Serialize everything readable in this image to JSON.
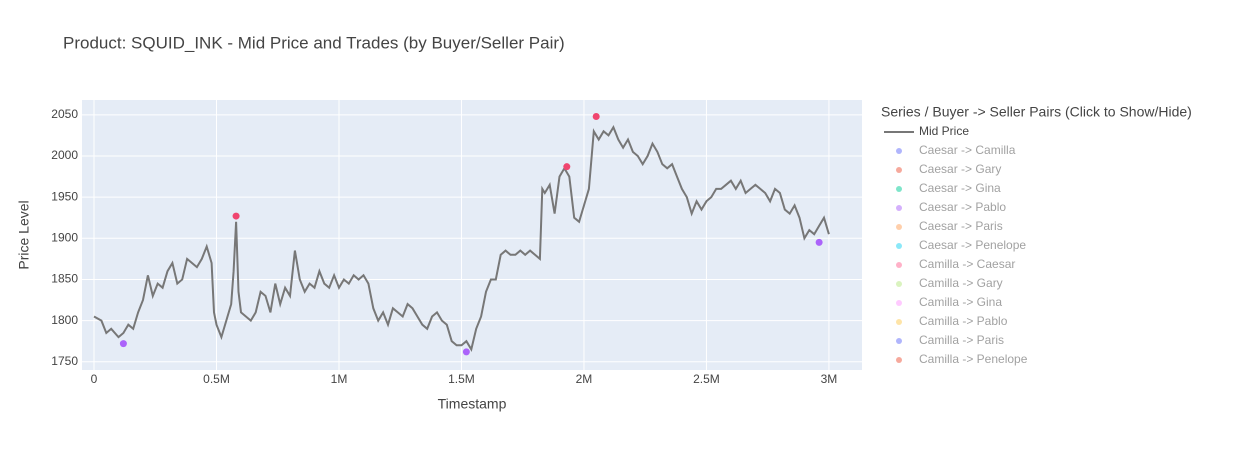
{
  "chart_data": {
    "type": "line",
    "title": "Product: SQUID_INK - Mid Price and Trades (by Buyer/Seller Pair)",
    "x_label": "Timestamp",
    "y_label": "Price Level",
    "legend_title": "Series / Buyer -> Seller Pairs (Click to Show/Hide)",
    "xlim": [
      -49000,
      3135000
    ],
    "ylim": [
      1740,
      2068
    ],
    "xticks": [
      0,
      {
        "value": 500000,
        "label": "0.5M"
      },
      {
        "value": 1000000,
        "label": "1M"
      },
      {
        "value": 1500000,
        "label": "1.5M"
      },
      {
        "value": 2000000,
        "label": "2M"
      },
      {
        "value": 2500000,
        "label": "2.5M"
      },
      {
        "value": 3000000,
        "label": "3M"
      }
    ],
    "yticks": [
      1750,
      1800,
      1850,
      1900,
      1950,
      2000,
      2050
    ],
    "grid": true,
    "series": [
      {
        "name": "Mid Price",
        "color": "#777777",
        "x": [
          0,
          30000,
          50000,
          70000,
          100000,
          120000,
          140000,
          160000,
          180000,
          200000,
          220000,
          240000,
          260000,
          280000,
          300000,
          320000,
          340000,
          360000,
          380000,
          400000,
          420000,
          440000,
          460000,
          480000,
          490000,
          500000,
          520000,
          540000,
          560000,
          570000,
          580000,
          590000,
          600000,
          620000,
          640000,
          660000,
          680000,
          700000,
          720000,
          740000,
          760000,
          780000,
          800000,
          820000,
          840000,
          860000,
          880000,
          900000,
          920000,
          940000,
          960000,
          980000,
          1000000,
          1020000,
          1040000,
          1060000,
          1080000,
          1100000,
          1120000,
          1140000,
          1160000,
          1180000,
          1200000,
          1220000,
          1240000,
          1260000,
          1280000,
          1300000,
          1320000,
          1340000,
          1360000,
          1380000,
          1400000,
          1420000,
          1440000,
          1460000,
          1480000,
          1500000,
          1520000,
          1540000,
          1560000,
          1580000,
          1600000,
          1620000,
          1640000,
          1660000,
          1680000,
          1700000,
          1720000,
          1740000,
          1760000,
          1780000,
          1800000,
          1820000,
          1830000,
          1840000,
          1860000,
          1880000,
          1900000,
          1920000,
          1940000,
          1960000,
          1980000,
          2000000,
          2020000,
          2040000,
          2060000,
          2080000,
          2100000,
          2120000,
          2140000,
          2160000,
          2180000,
          2200000,
          2220000,
          2240000,
          2260000,
          2280000,
          2300000,
          2320000,
          2340000,
          2360000,
          2380000,
          2400000,
          2420000,
          2440000,
          2460000,
          2480000,
          2500000,
          2520000,
          2540000,
          2560000,
          2580000,
          2600000,
          2620000,
          2640000,
          2660000,
          2680000,
          2700000,
          2720000,
          2740000,
          2760000,
          2780000,
          2800000,
          2820000,
          2840000,
          2860000,
          2880000,
          2900000,
          2920000,
          2940000,
          2960000,
          2980000,
          3000000
        ],
        "values": [
          1805,
          1800,
          1785,
          1790,
          1780,
          1785,
          1795,
          1790,
          1810,
          1825,
          1855,
          1830,
          1845,
          1840,
          1860,
          1870,
          1845,
          1850,
          1875,
          1870,
          1865,
          1875,
          1890,
          1870,
          1810,
          1795,
          1780,
          1800,
          1820,
          1860,
          1920,
          1835,
          1810,
          1805,
          1800,
          1810,
          1835,
          1830,
          1810,
          1845,
          1820,
          1840,
          1830,
          1885,
          1850,
          1835,
          1845,
          1840,
          1860,
          1845,
          1840,
          1855,
          1840,
          1850,
          1845,
          1855,
          1850,
          1855,
          1845,
          1815,
          1800,
          1810,
          1795,
          1815,
          1810,
          1805,
          1820,
          1815,
          1805,
          1795,
          1790,
          1805,
          1810,
          1800,
          1795,
          1775,
          1770,
          1770,
          1775,
          1765,
          1790,
          1805,
          1835,
          1850,
          1850,
          1880,
          1885,
          1880,
          1880,
          1885,
          1880,
          1885,
          1880,
          1875,
          1960,
          1955,
          1965,
          1930,
          1975,
          1985,
          1975,
          1925,
          1920,
          1940,
          1960,
          2030,
          2020,
          2030,
          2025,
          2035,
          2020,
          2010,
          2020,
          2005,
          2000,
          1990,
          2000,
          2015,
          2005,
          1990,
          1985,
          1990,
          1975,
          1960,
          1950,
          1930,
          1945,
          1935,
          1945,
          1950,
          1960,
          1960,
          1965,
          1970,
          1960,
          1970,
          1955,
          1960,
          1965,
          1960,
          1955,
          1945,
          1960,
          1955,
          1935,
          1930,
          1940,
          1925,
          1900,
          1910,
          1905,
          1915,
          1925,
          1905
        ],
        "visible": true
      },
      {
        "name": "Caesar -> Camilla",
        "color": "#636efa",
        "visible": false
      },
      {
        "name": "Caesar -> Gary",
        "color": "#EF553B",
        "visible": false
      },
      {
        "name": "Caesar -> Gina",
        "color": "#00cc96",
        "visible": false
      },
      {
        "name": "Caesar -> Pablo",
        "color": "#ab63fa",
        "visible": false
      },
      {
        "name": "Caesar -> Paris",
        "color": "#FFA15A",
        "visible": false
      },
      {
        "name": "Caesar -> Penelope",
        "color": "#19d3f3",
        "visible": false
      },
      {
        "name": "Camilla -> Caesar",
        "color": "#FF6692",
        "visible": false
      },
      {
        "name": "Camilla -> Gary",
        "color": "#B6E880",
        "visible": false
      },
      {
        "name": "Camilla -> Gina",
        "color": "#FF97FF",
        "visible": false
      },
      {
        "name": "Camilla -> Pablo",
        "color": "#FECB52",
        "visible": false
      },
      {
        "name": "Camilla -> Paris",
        "color": "#636efa",
        "visible": false
      },
      {
        "name": "Camilla -> Penelope",
        "color": "#EF553B",
        "visible": false
      }
    ],
    "trades": {
      "x": [
        120000,
        580000,
        1520000,
        1930000,
        2050000,
        2960000
      ],
      "values": [
        1772,
        1927,
        1762,
        1987,
        2048,
        1895
      ],
      "colors": [
        "#ab63fa",
        "#f0456f",
        "#ab63fa",
        "#f0456f",
        "#f0456f",
        "#ab63fa"
      ]
    }
  }
}
